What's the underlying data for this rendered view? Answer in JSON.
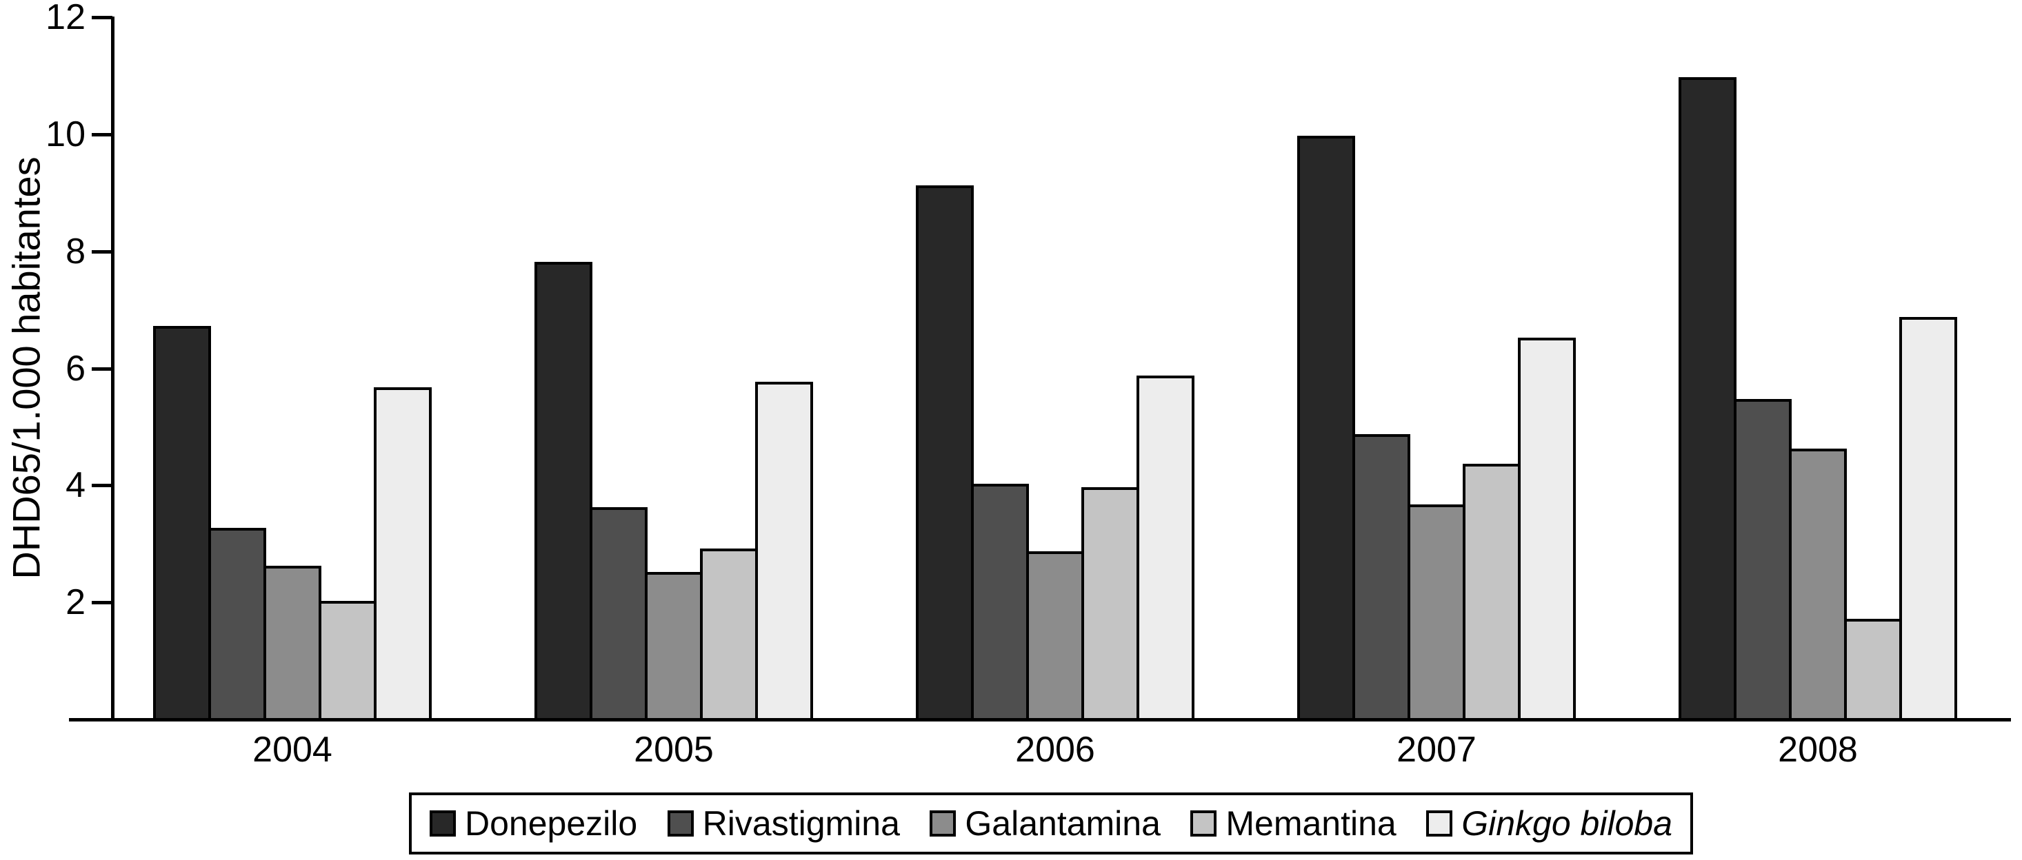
{
  "figure": {
    "kind": "grouped-bar-chart",
    "background": "#FFFFFF"
  },
  "chart_data": {
    "type": "bar",
    "title": "",
    "xlabel": "",
    "ylabel": "DHD65/1.000 habitantes",
    "categories": [
      "2004",
      "2005",
      "2006",
      "2007",
      "2008"
    ],
    "series": [
      {
        "name": "Donepezilo",
        "color": "#282828",
        "italic": false,
        "values": [
          6.7,
          7.8,
          9.1,
          9.95,
          10.95
        ]
      },
      {
        "name": "Rivastigmina",
        "color": "#4F4F4F",
        "italic": false,
        "values": [
          3.25,
          3.6,
          4.0,
          4.85,
          5.45
        ]
      },
      {
        "name": "Galantamina",
        "color": "#8C8C8C",
        "italic": false,
        "values": [
          2.6,
          2.5,
          2.85,
          3.65,
          4.6
        ]
      },
      {
        "name": "Memantina",
        "color": "#C4C4C4",
        "italic": false,
        "values": [
          2.0,
          2.9,
          3.95,
          4.35,
          1.7
        ]
      },
      {
        "name": "Ginkgo biloba",
        "color": "#EDEDED",
        "italic": true,
        "values": [
          5.65,
          5.75,
          5.85,
          6.5,
          6.85
        ]
      }
    ],
    "y_ticks": [
      2,
      4,
      6,
      8,
      10,
      12
    ],
    "ylim": [
      0,
      12
    ],
    "grid": false,
    "legend_position": "bottom",
    "axis_color": "#000000",
    "text_color": "#000000"
  }
}
